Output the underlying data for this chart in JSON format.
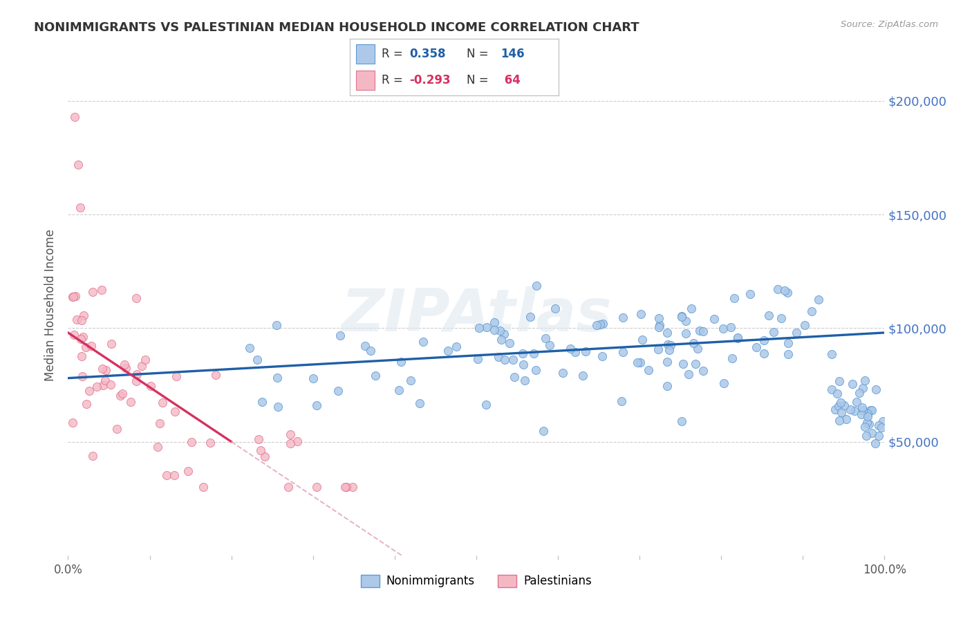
{
  "title": "NONIMMIGRANTS VS PALESTINIAN MEDIAN HOUSEHOLD INCOME CORRELATION CHART",
  "source": "Source: ZipAtlas.com",
  "ylabel": "Median Household Income",
  "y_ticks": [
    50000,
    100000,
    150000,
    200000
  ],
  "y_labels": [
    "$50,000",
    "$100,000",
    "$150,000",
    "$200,000"
  ],
  "y_min": 0,
  "y_max": 220000,
  "x_min": 0.0,
  "x_max": 1.0,
  "blue_R": 0.358,
  "blue_N": 146,
  "pink_R": -0.293,
  "pink_N": 64,
  "blue_color": "#adc8e8",
  "pink_color": "#f4b8c4",
  "blue_edge_color": "#5b9bd5",
  "pink_edge_color": "#e07090",
  "blue_line_color": "#1f5fa6",
  "pink_line_color": "#d63060",
  "pink_dash_color": "#e8b0c0",
  "watermark": "ZIPAtlas",
  "legend_label_blue": "Nonimmigrants",
  "legend_label_pink": "Palestinians",
  "title_color": "#333333",
  "axis_label_color": "#555555",
  "right_tick_color": "#4472c4",
  "grid_color": "#cccccc",
  "background_color": "#ffffff"
}
